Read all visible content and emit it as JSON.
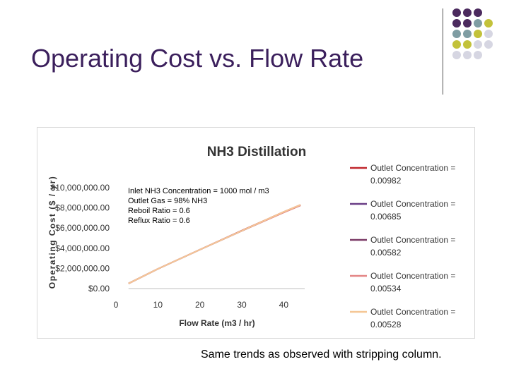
{
  "slide": {
    "title": "Operating Cost vs. Flow Rate",
    "caption": "Same trends as observed with stripping column."
  },
  "decoration": {
    "colors": [
      "#4b2a5e",
      "#7f9da3",
      "#c3c23a",
      "#d6d6e2"
    ],
    "grid": [
      [
        0,
        0,
        0,
        null
      ],
      [
        0,
        0,
        1,
        2
      ],
      [
        1,
        1,
        2,
        3
      ],
      [
        2,
        2,
        3,
        3
      ],
      [
        3,
        3,
        3,
        null
      ]
    ]
  },
  "chart_data": {
    "type": "line",
    "title": "NH3 Distillation",
    "xlabel": "Flow Rate (m3 / hr)",
    "ylabel": "Operating Cost ($ / yr)",
    "xlim": [
      0,
      45
    ],
    "ylim": [
      0,
      10000000
    ],
    "xticks": [
      "0",
      "10",
      "20",
      "30",
      "40"
    ],
    "yticks": [
      "$0.00",
      "$2,000,000.00",
      "$4,000,000.00",
      "$6,000,000.00",
      "$8,000,000.00",
      "$10,000,000.00"
    ],
    "grid": false,
    "legend_position": "right",
    "annotation": [
      "Inlet NH3 Concentration = 1000 mol / m3",
      "Outlet Gas = 98% NH3",
      "Reboil Ratio = 0.6",
      "Reflux Ratio = 0.6"
    ],
    "series": [
      {
        "name": "Outlet Concentration = 0.00982",
        "color": "#c0272d",
        "x": [
          3,
          10,
          20,
          30,
          40,
          44
        ],
        "y": [
          500000,
          1950000,
          3850000,
          5750000,
          7600000,
          8300000
        ]
      },
      {
        "name": "Outlet Concentration = 0.00685",
        "color": "#6a3e86",
        "x": [
          3,
          10,
          20,
          30,
          40,
          44
        ],
        "y": [
          500000,
          1950000,
          3850000,
          5720000,
          7560000,
          8260000
        ]
      },
      {
        "name": "Outlet Concentration = 0.00582",
        "color": "#7b3a66",
        "x": [
          3,
          10,
          20,
          30,
          40,
          44
        ],
        "y": [
          500000,
          1950000,
          3850000,
          5720000,
          7550000,
          8250000
        ]
      },
      {
        "name": "Outlet Concentration = 0.00534",
        "color": "#e38585",
        "x": [
          3,
          10,
          20,
          30,
          40,
          44
        ],
        "y": [
          500000,
          1950000,
          3850000,
          5720000,
          7540000,
          8240000
        ]
      },
      {
        "name": "Outlet Concentration = 0.00528",
        "color": "#f5c796",
        "x": [
          3,
          10,
          20,
          30,
          40,
          44
        ],
        "y": [
          500000,
          1950000,
          3850000,
          5730000,
          7600000,
          8300000
        ]
      }
    ]
  }
}
